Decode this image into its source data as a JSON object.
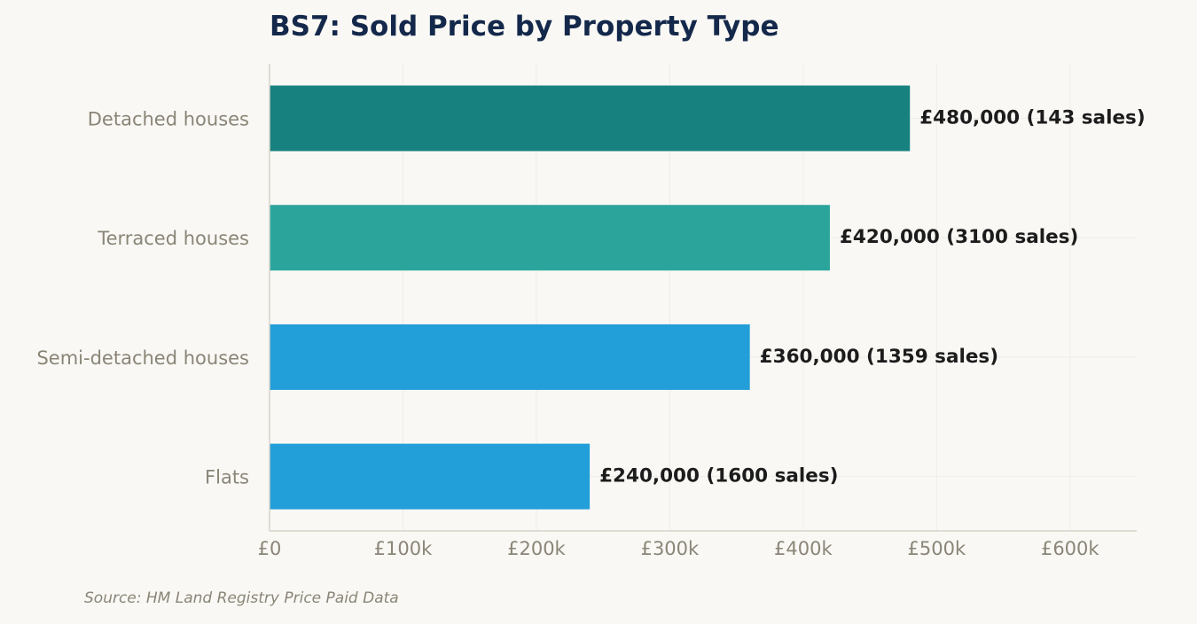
{
  "chart_data": {
    "type": "bar",
    "orientation": "horizontal",
    "title": "BS7: Sold Price by Property Type",
    "categories": [
      "Detached houses",
      "Terraced houses",
      "Semi-detached houses",
      "Flats"
    ],
    "values": [
      480000,
      420000,
      360000,
      240000
    ],
    "sales": [
      143,
      3100,
      1359,
      1600
    ],
    "data_labels": [
      "£480,000  (143 sales)",
      "£420,000  (3100 sales)",
      "£360,000  (1359 sales)",
      "£240,000  (1600 sales)"
    ],
    "bar_colors": [
      "#17817f",
      "#2ba59c",
      "#229ed9",
      "#229ed9"
    ],
    "xlim": [
      0,
      650000
    ],
    "xticks": [
      0,
      100000,
      200000,
      300000,
      400000,
      500000,
      600000
    ],
    "xtick_labels": [
      "£0",
      "£100k",
      "£200k",
      "£300k",
      "£400k",
      "£500k",
      "£600k"
    ],
    "xlabel": "",
    "ylabel": "",
    "grid": true
  },
  "source_note": "Source: HM Land Registry Price Paid Data",
  "colors": {
    "background": "#f9f8f4",
    "title": "#14284b",
    "tick_text": "#8a8577",
    "data_label_text": "#1c1c1c",
    "grid": "#eeede7",
    "axis": "#d6d4ca"
  }
}
